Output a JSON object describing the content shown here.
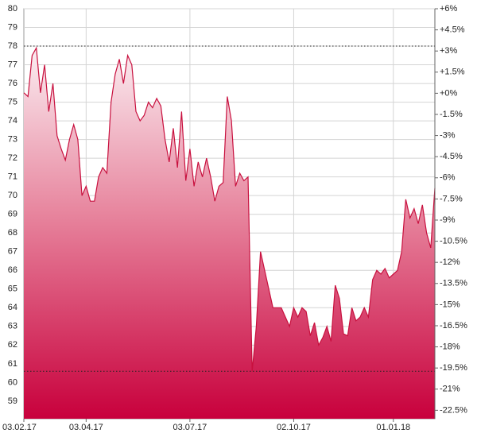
{
  "chart_data": {
    "type": "area",
    "categories": [
      "03.02.17",
      null,
      null,
      null,
      null,
      null,
      null,
      null,
      null,
      null,
      null,
      null,
      null,
      null,
      null,
      "03.04.17",
      null,
      null,
      null,
      null,
      null,
      null,
      null,
      null,
      null,
      null,
      null,
      null,
      null,
      null,
      null,
      null,
      null,
      null,
      null,
      null,
      null,
      null,
      null,
      null,
      "03.07.17",
      null,
      null,
      null,
      null,
      null,
      null,
      null,
      null,
      null,
      null,
      null,
      null,
      null,
      null,
      null,
      null,
      null,
      null,
      null,
      null,
      null,
      null,
      null,
      null,
      "02.10.17",
      null,
      null,
      null,
      null,
      null,
      null,
      null,
      null,
      null,
      null,
      null,
      null,
      null,
      null,
      null,
      null,
      null,
      null,
      null,
      null,
      null,
      null,
      null,
      "01.01.18",
      null,
      null,
      null,
      null,
      null,
      null,
      null,
      null,
      null,
      null
    ],
    "values": [
      75.5,
      75.3,
      77.5,
      77.9,
      75.5,
      77,
      74.5,
      76,
      73.2,
      72.5,
      71.9,
      73,
      73.8,
      73,
      70,
      70.5,
      69.7,
      69.7,
      71,
      71.5,
      71.2,
      75,
      76.5,
      77.3,
      76,
      77.5,
      77,
      74.5,
      74,
      74.3,
      75,
      74.7,
      75.2,
      74.8,
      73,
      71.8,
      73.6,
      71.5,
      74.5,
      70.8,
      72.5,
      70.5,
      71.8,
      71,
      72,
      71,
      69.7,
      70.5,
      70.7,
      75.3,
      74,
      70.5,
      71.2,
      70.8,
      71,
      60.6,
      63,
      67,
      66,
      65,
      64,
      64,
      64,
      63.5,
      63,
      64,
      63.5,
      64,
      63.8,
      62.5,
      63.2,
      62,
      62.4,
      63,
      62.2,
      65.2,
      64.5,
      62.6,
      62.5,
      64,
      63.3,
      63.5,
      64,
      63.5,
      65.5,
      66,
      65.8,
      66.1,
      65.6,
      65.8,
      66,
      67,
      69.8,
      68.8,
      69.3,
      68.5,
      69.5,
      68,
      67.2,
      70.4
    ],
    "color": "#c8103e",
    "ylim": [
      58.06,
      80
    ],
    "yticks": [
      59,
      60,
      61,
      62,
      63,
      64,
      65,
      66,
      67,
      68,
      69,
      70,
      71,
      72,
      73,
      74,
      75,
      76,
      77,
      78,
      79,
      80
    ],
    "y2lim": [
      -23.1,
      6
    ],
    "y2ticks": [
      {
        "value": 6,
        "label": "+6%"
      },
      {
        "value": 4.5,
        "label": "+4.5%"
      },
      {
        "value": 3,
        "label": "+3%"
      },
      {
        "value": 1.5,
        "label": "+1.5%"
      },
      {
        "value": 0,
        "label": "+0%"
      },
      {
        "value": -1.5,
        "label": "-1.5%"
      },
      {
        "value": -3,
        "label": "-3%"
      },
      {
        "value": -4.5,
        "label": "-4.5%"
      },
      {
        "value": -6,
        "label": "-6%"
      },
      {
        "value": -7.5,
        "label": "-7.5%"
      },
      {
        "value": -9,
        "label": "-9%"
      },
      {
        "value": -10.5,
        "label": "-10.5%"
      },
      {
        "value": -12,
        "label": "-12%"
      },
      {
        "value": -13.5,
        "label": "-13.5%"
      },
      {
        "value": -15,
        "label": "-15%"
      },
      {
        "value": -16.5,
        "label": "-16.5%"
      },
      {
        "value": -18,
        "label": "-18%"
      },
      {
        "value": -19.5,
        "label": "-19.5%"
      },
      {
        "value": -21,
        "label": "-21%"
      },
      {
        "value": -22.5,
        "label": "-22.5%"
      }
    ],
    "hlines": [
      78,
      60.6
    ],
    "grid": true
  }
}
